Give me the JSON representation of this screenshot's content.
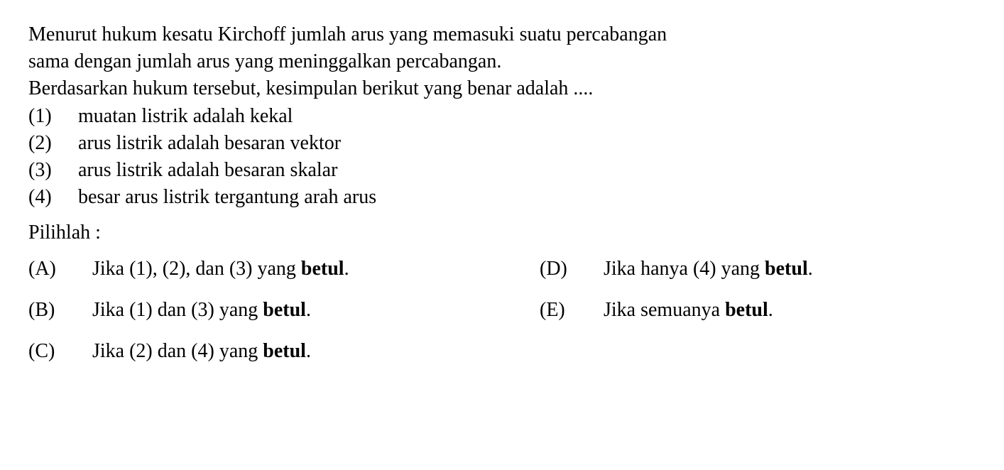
{
  "intro": {
    "line1": "Menurut hukum kesatu Kirchoff jumlah arus yang memasuki suatu percabangan",
    "line2": "sama dengan jumlah arus yang meninggalkan percabangan.",
    "line3": "Berdasarkan hukum tersebut, kesimpulan berikut yang benar adalah ...."
  },
  "statements": [
    {
      "num": "(1)",
      "text": "muatan listrik adalah kekal"
    },
    {
      "num": "(2)",
      "text": "arus listrik adalah besaran vektor"
    },
    {
      "num": "(3)",
      "text": "arus listrik adalah besaran skalar"
    },
    {
      "num": "(4)",
      "text": "besar arus listrik tergantung arah arus"
    }
  ],
  "prompt": "Pilihlah :",
  "options": {
    "A": {
      "label": "(A)",
      "prefix": "Jika (1), (2), dan (3) yang ",
      "bold": "betul",
      "suffix": "."
    },
    "B": {
      "label": "(B)",
      "prefix": "Jika (1) dan (3) yang ",
      "bold": "betul",
      "suffix": "."
    },
    "C": {
      "label": "(C)",
      "prefix": "Jika (2) dan (4) yang ",
      "bold": "betul",
      "suffix": "."
    },
    "D": {
      "label": "(D)",
      "prefix": "Jika hanya (4) yang ",
      "bold": "betul",
      "suffix": "."
    },
    "E": {
      "label": "(E)",
      "prefix": "Jika semuanya ",
      "bold": "betul",
      "suffix": "."
    }
  },
  "colors": {
    "background": "#ffffff",
    "text": "#000000"
  },
  "typography": {
    "fontFamily": "Times New Roman",
    "fontSize": 28,
    "lineHeight": 1.35
  }
}
